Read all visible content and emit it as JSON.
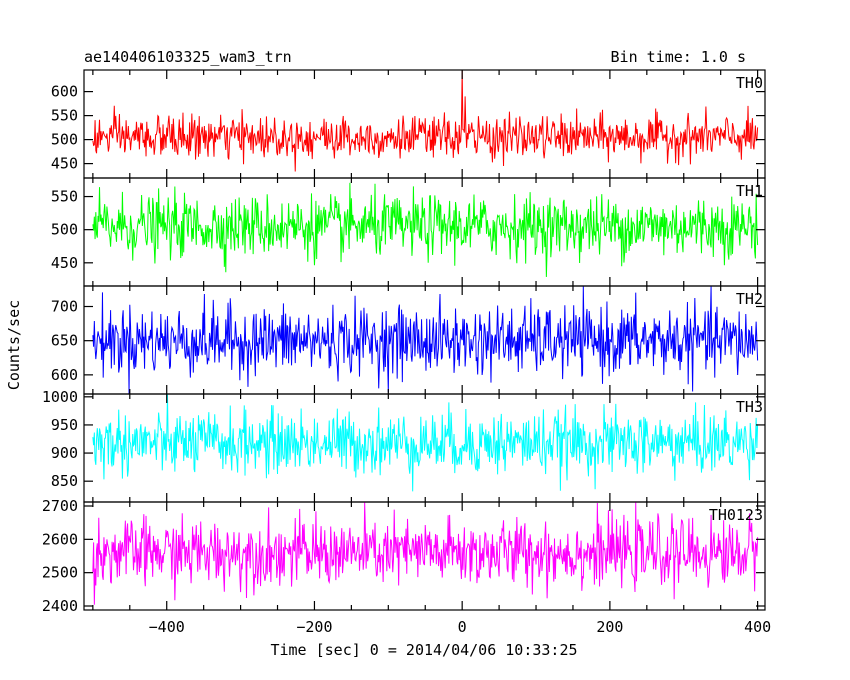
{
  "chart_data": {
    "type": "line",
    "title": "ae140406103325_wam3_trn",
    "bin_time_label": "Bin time: 1.0 s",
    "xlabel": "Time [sec] 0 = 2014/04/06 10:33:25",
    "ylabel": "Counts/sec",
    "xlim": [
      -512,
      410
    ],
    "x_data_range": [
      -500,
      400
    ],
    "x_bin": 1.0,
    "xticks": [
      -400,
      -200,
      0,
      200,
      400
    ],
    "xtick_labels": [
      "−400",
      "−200",
      "0",
      "200",
      "400"
    ],
    "grid": false,
    "panels": [
      {
        "name": "TH0",
        "color": "#ff0000",
        "ylim": [
          420,
          645
        ],
        "yticks": [
          450,
          500,
          550,
          600
        ],
        "mean": 505,
        "noise": 22,
        "features": [
          {
            "x": 0,
            "peak": 660
          },
          {
            "x": 4,
            "peak": 590
          }
        ]
      },
      {
        "name": "TH1",
        "color": "#00ff00",
        "ylim": [
          415,
          578
        ],
        "yticks": [
          450,
          500,
          550
        ],
        "mean": 505,
        "noise": 23,
        "features": []
      },
      {
        "name": "TH2",
        "color": "#0000ff",
        "ylim": [
          572,
          730
        ],
        "yticks": [
          600,
          650,
          700
        ],
        "mean": 650,
        "noise": 25,
        "features": []
      },
      {
        "name": "TH3",
        "color": "#00ffff",
        "ylim": [
          813,
          1005
        ],
        "yticks": [
          850,
          900,
          950,
          1000
        ],
        "mean": 918,
        "noise": 28,
        "features": []
      },
      {
        "name": "TH0123",
        "color": "#ff00ff",
        "ylim": [
          2388,
          2712
        ],
        "yticks": [
          2400,
          2500,
          2600,
          2700
        ],
        "mean": 2560,
        "noise": 50,
        "features": []
      }
    ]
  }
}
